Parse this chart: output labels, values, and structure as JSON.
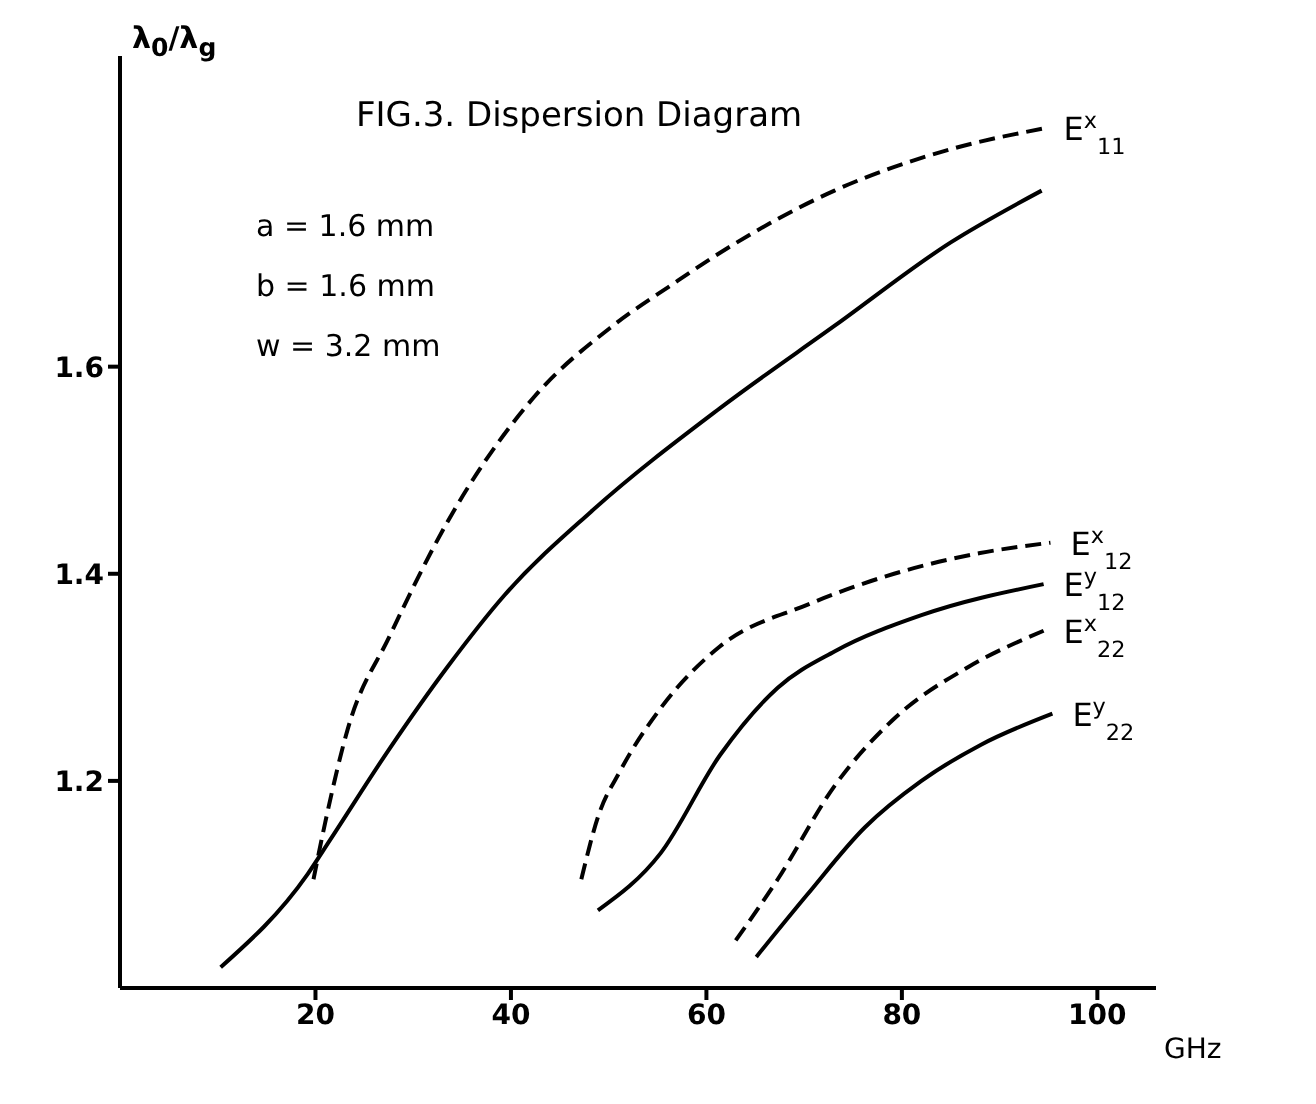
{
  "chart_data": {
    "type": "line",
    "title": "FIG.3. Dispersion Diagram",
    "xlabel": "GHz",
    "ylabel": "λ$_{0}$/λ$_{g}$",
    "annotations": [
      "a = 1.6 mm",
      "b = 1.6 mm",
      "w = 3.2 mm"
    ],
    "xlim": [
      0,
      106
    ],
    "ylim": [
      1.0,
      1.9
    ],
    "xticks": [
      20,
      40,
      60,
      80,
      100
    ],
    "yticks": [
      1.2,
      1.4,
      1.6
    ],
    "marker": "none",
    "series": [
      {
        "name": "E$^{x}$$_{11}$",
        "color": "#000000",
        "line_style": "dashed",
        "x": [
          19.8,
          21,
          23.3,
          27.6,
          33.5,
          42.3,
          50.5,
          56.6,
          61.4,
          73.1,
          85,
          94.5
        ],
        "values": [
          1.105,
          1.16,
          1.25,
          1.34,
          1.45,
          1.57,
          1.64,
          1.68,
          1.71,
          1.77,
          1.81,
          1.83
        ]
      },
      {
        "color": "#000000",
        "line_style": "solid",
        "x": [
          10.3,
          19.2,
          21.5,
          27.5,
          33.5,
          39.4,
          48.2,
          61.4,
          73.2,
          85,
          94.3
        ],
        "values": [
          1.02,
          1.11,
          1.143,
          1.23,
          1.31,
          1.38,
          1.46,
          1.56,
          1.64,
          1.72,
          1.77
        ]
      },
      {
        "name": "E$^{x}$$_{12}$",
        "color": "#000000",
        "line_style": "dashed",
        "x": [
          47.2,
          48.9,
          51.2,
          55.3,
          61.4,
          70.3,
          79.2,
          88,
          95.2
        ],
        "values": [
          1.105,
          1.165,
          1.21,
          1.27,
          1.33,
          1.37,
          1.4,
          1.42,
          1.43
        ]
      },
      {
        "name": "E$^{y}$$_{12}$",
        "color": "#000000",
        "line_style": "solid",
        "x": [
          48.9,
          55.3,
          61.4,
          67.3,
          73.1,
          82,
          94.5
        ],
        "values": [
          1.075,
          1.13,
          1.225,
          1.29,
          1.325,
          1.36,
          1.39
        ]
      },
      {
        "name": "E$^{x}$$_{22}$",
        "color": "#000000",
        "line_style": "dashed",
        "x": [
          63,
          67.3,
          73.1,
          79.2,
          86.8,
          94.5
        ],
        "values": [
          1.046,
          1.105,
          1.195,
          1.26,
          1.31,
          1.345
        ]
      },
      {
        "name": "E$^{y}$$_{22}$",
        "color": "#000000",
        "line_style": "solid",
        "x": [
          65.1,
          70.3,
          76.2,
          82,
          88.1,
          95.4
        ],
        "values": [
          1.03,
          1.09,
          1.155,
          1.2,
          1.235,
          1.265
        ]
      }
    ]
  }
}
